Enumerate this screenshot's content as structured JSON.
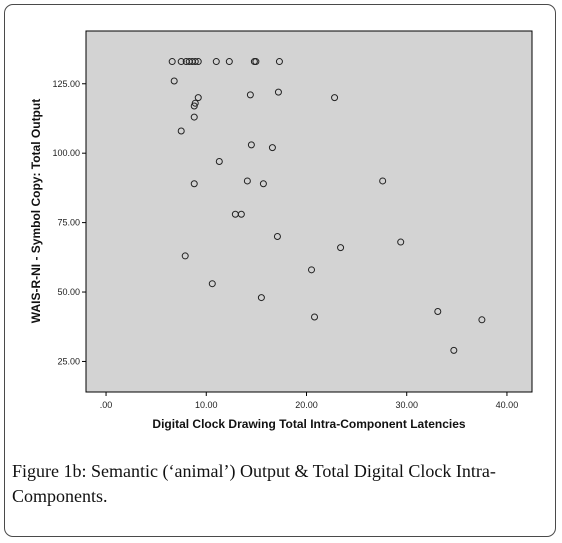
{
  "chart_data": {
    "type": "scatter",
    "xlabel": "Digital Clock Drawing  Total Intra-Component Latencies",
    "ylabel": "WAIS-R-NI - Symbol Copy: Total Output",
    "xlim": [
      -2,
      42.5
    ],
    "ylim": [
      14,
      144
    ],
    "x_ticks": [
      0,
      10,
      20,
      30,
      40
    ],
    "x_tick_labels": [
      ".00",
      "10.00",
      "20.00",
      "30.00",
      "40.00"
    ],
    "y_ticks": [
      25,
      50,
      75,
      100,
      125
    ],
    "y_tick_labels": [
      "25.00",
      "50.00",
      "75.00",
      "100.00",
      "125.00"
    ],
    "grid": false,
    "points": [
      {
        "x": 6.6,
        "y": 133
      },
      {
        "x": 7.5,
        "y": 133
      },
      {
        "x": 8.0,
        "y": 133
      },
      {
        "x": 8.3,
        "y": 133
      },
      {
        "x": 8.6,
        "y": 133
      },
      {
        "x": 8.9,
        "y": 133
      },
      {
        "x": 9.2,
        "y": 133
      },
      {
        "x": 11.0,
        "y": 133
      },
      {
        "x": 12.3,
        "y": 133
      },
      {
        "x": 14.8,
        "y": 133
      },
      {
        "x": 14.95,
        "y": 133
      },
      {
        "x": 17.3,
        "y": 133
      },
      {
        "x": 6.8,
        "y": 126
      },
      {
        "x": 9.2,
        "y": 120
      },
      {
        "x": 14.4,
        "y": 121
      },
      {
        "x": 17.2,
        "y": 122
      },
      {
        "x": 22.8,
        "y": 120
      },
      {
        "x": 8.9,
        "y": 118
      },
      {
        "x": 8.8,
        "y": 117
      },
      {
        "x": 8.8,
        "y": 113
      },
      {
        "x": 7.5,
        "y": 108
      },
      {
        "x": 14.5,
        "y": 103
      },
      {
        "x": 16.6,
        "y": 102
      },
      {
        "x": 11.3,
        "y": 97
      },
      {
        "x": 8.8,
        "y": 89
      },
      {
        "x": 14.1,
        "y": 90
      },
      {
        "x": 15.7,
        "y": 89
      },
      {
        "x": 27.6,
        "y": 90
      },
      {
        "x": 12.9,
        "y": 78
      },
      {
        "x": 13.5,
        "y": 78
      },
      {
        "x": 17.1,
        "y": 70
      },
      {
        "x": 23.4,
        "y": 66
      },
      {
        "x": 29.4,
        "y": 68
      },
      {
        "x": 7.9,
        "y": 63
      },
      {
        "x": 20.5,
        "y": 58
      },
      {
        "x": 10.6,
        "y": 53
      },
      {
        "x": 15.5,
        "y": 48
      },
      {
        "x": 20.8,
        "y": 41
      },
      {
        "x": 33.1,
        "y": 43
      },
      {
        "x": 37.5,
        "y": 40
      },
      {
        "x": 34.7,
        "y": 29
      }
    ]
  },
  "caption": {
    "label": "Figure 1b:",
    "text": " Semantic (‘animal’) Output & Total Digital Clock Intra-Components."
  }
}
